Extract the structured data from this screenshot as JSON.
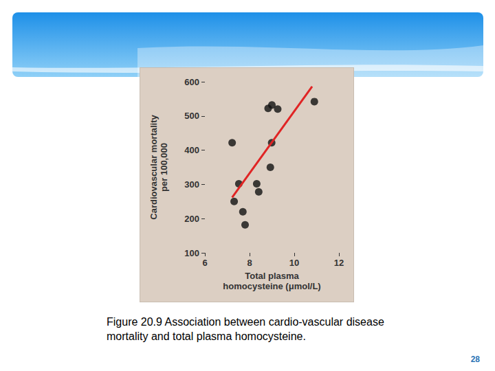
{
  "chart_data": {
    "type": "scatter",
    "x_label": "Total plasma\nhomocysteine (μmol/L)",
    "y_label": "Cardiovascular mortality\nper 100,000",
    "xlim": [
      6,
      12
    ],
    "xticks": [
      6,
      8,
      10,
      12
    ],
    "ylim": [
      100,
      600
    ],
    "yticks": [
      100,
      200,
      300,
      400,
      500,
      600
    ],
    "grid": false,
    "series": [
      {
        "type": "scatter",
        "color": "#111111",
        "marker": "circle",
        "x": [
          7.22,
          7.31,
          7.52,
          7.7,
          7.8,
          8.83,
          9.0,
          9.26,
          8.99,
          8.93,
          8.32,
          8.41,
          10.9
        ],
        "values": [
          422,
          250,
          302,
          220,
          182,
          522,
          532,
          520,
          422,
          350,
          302,
          278,
          542
        ]
      },
      {
        "type": "line",
        "color": "#e02424",
        "line_style": "solid",
        "x": [
          7.22,
          10.8
        ],
        "values": [
          262,
          586
        ]
      }
    ]
  },
  "slide": {
    "caption": "Figure 20.9 Association between cardio-vascular disease mortality and total plasma homocysteine.",
    "page_number": "28"
  }
}
